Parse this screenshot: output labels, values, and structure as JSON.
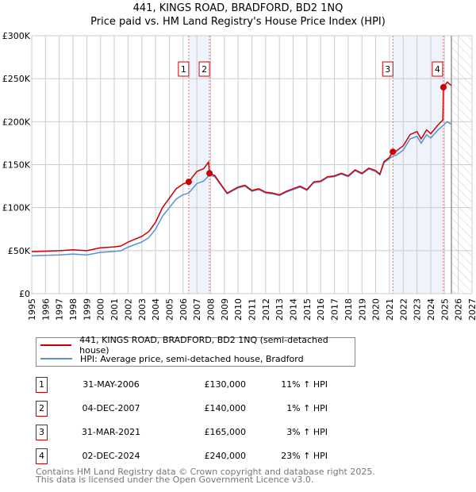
{
  "title_line1": "441, KINGS ROAD, BRADFORD, BD2 1NQ",
  "title_line2": "Price paid vs. HM Land Registry's House Price Index (HPI)",
  "chart_data": {
    "type": "line",
    "xlim": [
      1995,
      2027
    ],
    "ylim": [
      0,
      300000
    ],
    "yticks": [
      0,
      50000,
      100000,
      150000,
      200000,
      250000,
      300000
    ],
    "ytick_labels": [
      "£0",
      "£50K",
      "£100K",
      "£150K",
      "£200K",
      "£250K",
      "£300K"
    ],
    "xticks": [
      "1995",
      "1996",
      "1997",
      "1998",
      "1999",
      "2000",
      "2001",
      "2002",
      "2003",
      "2004",
      "2005",
      "2006",
      "2007",
      "2008",
      "2009",
      "2010",
      "2011",
      "2012",
      "2013",
      "2014",
      "2015",
      "2016",
      "2017",
      "2018",
      "2019",
      "2020",
      "2021",
      "2022",
      "2023",
      "2024",
      "2025",
      "2026",
      "2027"
    ],
    "forecast_start": 2025.5,
    "shaded_ranges": [
      [
        2006.41,
        2007.92
      ],
      [
        2021.25,
        2024.92
      ]
    ],
    "series": [
      {
        "name": "441, KINGS ROAD, BRADFORD, BD2 1NQ (semi-detached house)",
        "color": "#cc0000",
        "x": [
          1995,
          1996,
          1997,
          1998,
          1999,
          2000,
          2001,
          2001.5,
          2002,
          2003,
          2003.5,
          2004,
          2004.5,
          2005,
          2005.5,
          2006,
          2006.41,
          2007,
          2007.5,
          2007.85,
          2007.92,
          2008.3,
          2008.8,
          2009.2,
          2010,
          2010.5,
          2011,
          2011.5,
          2012,
          2012.5,
          2013,
          2013.5,
          2014,
          2014.5,
          2015,
          2015.5,
          2016,
          2016.5,
          2017,
          2017.5,
          2018,
          2018.5,
          2019,
          2019.5,
          2020,
          2020.3,
          2020.6,
          2021,
          2021.25,
          2021.5,
          2022,
          2022.5,
          2023,
          2023.3,
          2023.7,
          2024,
          2024.5,
          2024.88,
          2024.92,
          2025.2,
          2025.5
        ],
        "y": [
          48800,
          49400,
          50000,
          51000,
          50000,
          53300,
          54400,
          55500,
          60000,
          66600,
          72000,
          83000,
          100000,
          111000,
          122000,
          127600,
          130000,
          142000,
          145400,
          153000,
          140000,
          137400,
          126000,
          117000,
          124000,
          126000,
          120000,
          122000,
          118000,
          117000,
          115000,
          119000,
          122000,
          125000,
          121000,
          130000,
          131000,
          136000,
          137000,
          140000,
          137000,
          144000,
          140000,
          146000,
          143000,
          139000,
          153500,
          158600,
          165000,
          166000,
          172000,
          185000,
          188500,
          180000,
          190500,
          186000,
          195700,
          202000,
          240000,
          246000,
          242000
        ]
      },
      {
        "name": "HPI: Average price, semi-detached house, Bradford",
        "color": "#5b8fd4",
        "x": [
          1995,
          1996,
          1997,
          1998,
          1999,
          2000,
          2001,
          2001.5,
          2002,
          2003,
          2003.5,
          2004,
          2004.5,
          2005,
          2005.5,
          2006,
          2006.41,
          2007,
          2007.5,
          2007.92,
          2008.3,
          2008.8,
          2009.2,
          2010,
          2010.5,
          2011,
          2011.5,
          2012,
          2012.5,
          2013,
          2013.5,
          2014,
          2014.5,
          2015,
          2015.5,
          2016,
          2016.5,
          2017,
          2017.5,
          2018,
          2018.5,
          2019,
          2019.5,
          2020,
          2020.3,
          2020.6,
          2021,
          2021.25,
          2021.5,
          2022,
          2022.5,
          2023,
          2023.3,
          2023.7,
          2024,
          2024.5,
          2024.92,
          2025.2,
          2025.5
        ],
        "y": [
          44000,
          44500,
          45000,
          46000,
          45000,
          48000,
          49000,
          50000,
          54000,
          60000,
          65000,
          75000,
          90000,
          100000,
          110000,
          115000,
          117000,
          128000,
          131000,
          138000,
          136000,
          125000,
          116000,
          123000,
          125000,
          119000,
          121000,
          117000,
          116000,
          114000,
          118000,
          121000,
          124000,
          120000,
          129000,
          130000,
          135000,
          136000,
          139000,
          136000,
          143000,
          139000,
          145000,
          142000,
          138000,
          152000,
          157000,
          160000,
          161000,
          167000,
          180000,
          183000,
          175000,
          185000,
          181000,
          190000,
          196000,
          200000,
          197000
        ]
      }
    ],
    "sales": [
      {
        "label": "1",
        "date": "31-MAY-2006",
        "x": 2006.41,
        "price": "£130,000",
        "value": 130000,
        "hpi": "11% ↑ HPI"
      },
      {
        "label": "2",
        "date": "04-DEC-2007",
        "x": 2007.92,
        "price": "£140,000",
        "value": 140000,
        "hpi": "1% ↑ HPI"
      },
      {
        "label": "3",
        "date": "31-MAR-2021",
        "x": 2021.25,
        "price": "£165,000",
        "value": 165000,
        "hpi": "3% ↑ HPI"
      },
      {
        "label": "4",
        "date": "02-DEC-2024",
        "x": 2024.92,
        "price": "£240,000",
        "value": 240000,
        "hpi": "23% ↑ HPI"
      }
    ]
  },
  "footer_line1": "Contains HM Land Registry data © Crown copyright and database right 2025.",
  "footer_line2": "This data is licensed under the Open Government Licence v3.0."
}
